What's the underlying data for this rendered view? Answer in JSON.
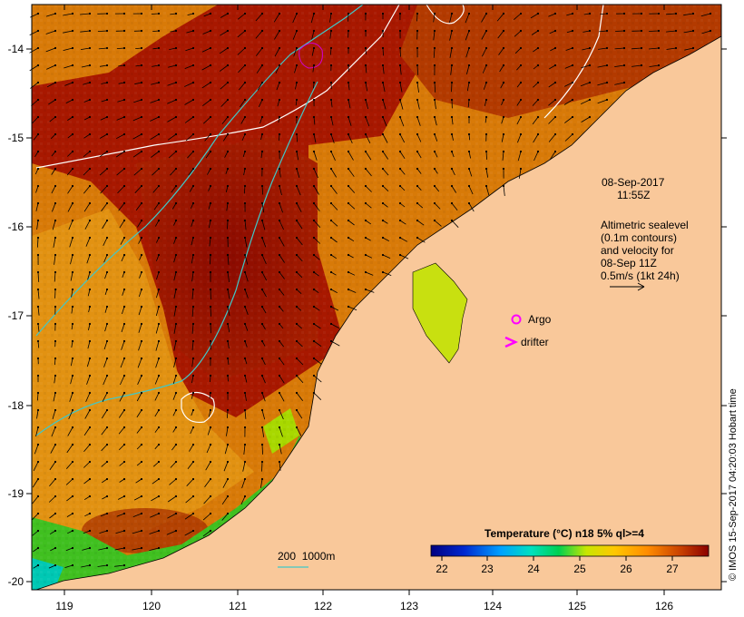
{
  "date_label": "08-Sep-2017",
  "time_label": "11:55Z",
  "altimetry_lines": [
    "Altimetric sealevel",
    "(0.1m contours)",
    "and velocity for",
    "08-Sep 11Z",
    "0.5m/s (1kt 24h)"
  ],
  "legend": {
    "argo": "Argo",
    "drifter": "drifter",
    "argo_color": "#ff00ff",
    "drifter_color": "#ff00ff"
  },
  "bathymetry_label": "200  1000m",
  "colorbar": {
    "title": "Temperature (°C) n18 5% ql>=4",
    "ticks": [
      "22",
      "23",
      "24",
      "25",
      "26",
      "27"
    ],
    "colors": [
      "#000080",
      "#0028d0",
      "#00a0ff",
      "#00e0c0",
      "#00d050",
      "#c8e600",
      "#ffc800",
      "#ff8c00",
      "#c84000",
      "#8b0000"
    ]
  },
  "credit": "© IMOS 15-Sep-2017 04:20:03 Hobart time",
  "axes": {
    "x_ticks": [
      "119",
      "120",
      "121",
      "122",
      "123",
      "124",
      "125",
      "126"
    ],
    "y_ticks": [
      "-14",
      "-15",
      "-16",
      "-17",
      "-18",
      "-19",
      "-20"
    ]
  },
  "colors": {
    "land": "#f9c89a",
    "ocean_warm": "#a81400",
    "ocean_mid": "#d25f00",
    "ocean_cool": "#e89a10",
    "coastal_green": "#40c020",
    "contour_white": "#ffffff",
    "contour_cyan": "#40c8c8"
  }
}
